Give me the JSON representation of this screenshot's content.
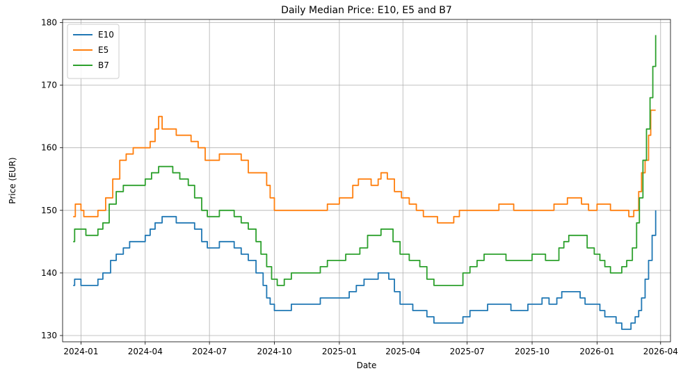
{
  "chart_data": {
    "type": "line",
    "title": "Daily Median Price: E10, E5 and B7",
    "xlabel": "Date",
    "ylabel": "Price (EUR)",
    "xlim": [
      "2023-12-06",
      "2026-04-15"
    ],
    "ylim": [
      129,
      180.5
    ],
    "x_ticks": [
      "2024-01",
      "2024-04",
      "2024-07",
      "2024-10",
      "2025-01",
      "2025-04",
      "2025-07",
      "2025-10",
      "2026-01",
      "2026-04"
    ],
    "y_ticks": [
      130,
      140,
      150,
      160,
      170,
      180
    ],
    "grid": true,
    "legend_position": "top-left",
    "colors": {
      "E10": "#1f77b4",
      "E5": "#ff7f0e",
      "B7": "#2ca02c"
    },
    "series": [
      {
        "name": "E10",
        "color": "#1f77b4",
        "points": [
          [
            "2023-12-21",
            138
          ],
          [
            "2023-12-23",
            139
          ],
          [
            "2024-01-01",
            138
          ],
          [
            "2024-01-20",
            138
          ],
          [
            "2024-01-25",
            139
          ],
          [
            "2024-02-01",
            140
          ],
          [
            "2024-02-12",
            142
          ],
          [
            "2024-02-20",
            143
          ],
          [
            "2024-03-01",
            144
          ],
          [
            "2024-03-10",
            145
          ],
          [
            "2024-03-25",
            145
          ],
          [
            "2024-04-01",
            146
          ],
          [
            "2024-04-08",
            147
          ],
          [
            "2024-04-15",
            148
          ],
          [
            "2024-04-25",
            149
          ],
          [
            "2024-05-05",
            149
          ],
          [
            "2024-05-15",
            148
          ],
          [
            "2024-06-01",
            148
          ],
          [
            "2024-06-10",
            147
          ],
          [
            "2024-06-20",
            145
          ],
          [
            "2024-06-28",
            144
          ],
          [
            "2024-07-05",
            144
          ],
          [
            "2024-07-15",
            145
          ],
          [
            "2024-07-25",
            145
          ],
          [
            "2024-08-05",
            144
          ],
          [
            "2024-08-15",
            143
          ],
          [
            "2024-08-25",
            142
          ],
          [
            "2024-09-05",
            140
          ],
          [
            "2024-09-15",
            138
          ],
          [
            "2024-09-20",
            136
          ],
          [
            "2024-09-25",
            135
          ],
          [
            "2024-10-01",
            134
          ],
          [
            "2024-10-15",
            134
          ],
          [
            "2024-10-25",
            135
          ],
          [
            "2024-11-10",
            135
          ],
          [
            "2024-11-25",
            135
          ],
          [
            "2024-12-05",
            136
          ],
          [
            "2024-12-20",
            136
          ],
          [
            "2025-01-05",
            136
          ],
          [
            "2025-01-15",
            137
          ],
          [
            "2025-01-25",
            138
          ],
          [
            "2025-02-05",
            139
          ],
          [
            "2025-02-15",
            139
          ],
          [
            "2025-02-25",
            140
          ],
          [
            "2025-03-05",
            140
          ],
          [
            "2025-03-12",
            139
          ],
          [
            "2025-03-20",
            137
          ],
          [
            "2025-03-28",
            135
          ],
          [
            "2025-04-05",
            135
          ],
          [
            "2025-04-15",
            134
          ],
          [
            "2025-04-25",
            134
          ],
          [
            "2025-05-05",
            133
          ],
          [
            "2025-05-15",
            132
          ],
          [
            "2025-05-30",
            132
          ],
          [
            "2025-06-15",
            132
          ],
          [
            "2025-06-25",
            133
          ],
          [
            "2025-07-05",
            134
          ],
          [
            "2025-07-20",
            134
          ],
          [
            "2025-07-30",
            135
          ],
          [
            "2025-08-10",
            135
          ],
          [
            "2025-08-20",
            135
          ],
          [
            "2025-09-01",
            134
          ],
          [
            "2025-09-15",
            134
          ],
          [
            "2025-09-25",
            135
          ],
          [
            "2025-10-05",
            135
          ],
          [
            "2025-10-15",
            136
          ],
          [
            "2025-10-25",
            135
          ],
          [
            "2025-11-05",
            136
          ],
          [
            "2025-11-12",
            137
          ],
          [
            "2025-11-20",
            137
          ],
          [
            "2025-11-30",
            137
          ],
          [
            "2025-12-08",
            136
          ],
          [
            "2025-12-15",
            135
          ],
          [
            "2025-12-25",
            135
          ],
          [
            "2026-01-05",
            134
          ],
          [
            "2026-01-12",
            133
          ],
          [
            "2026-01-20",
            133
          ],
          [
            "2026-01-28",
            132
          ],
          [
            "2026-02-05",
            131
          ],
          [
            "2026-02-12",
            131
          ],
          [
            "2026-02-18",
            132
          ],
          [
            "2026-02-24",
            133
          ],
          [
            "2026-03-01",
            134
          ],
          [
            "2026-03-05",
            136
          ],
          [
            "2026-03-10",
            139
          ],
          [
            "2026-03-15",
            142
          ],
          [
            "2026-03-20",
            146
          ],
          [
            "2026-03-25",
            150
          ]
        ]
      },
      {
        "name": "E5",
        "color": "#ff7f0e",
        "points": [
          [
            "2023-12-21",
            149
          ],
          [
            "2023-12-24",
            151
          ],
          [
            "2024-01-01",
            150
          ],
          [
            "2024-01-05",
            149
          ],
          [
            "2024-01-15",
            149
          ],
          [
            "2024-01-25",
            150
          ],
          [
            "2024-02-05",
            152
          ],
          [
            "2024-02-15",
            155
          ],
          [
            "2024-02-25",
            158
          ],
          [
            "2024-03-05",
            159
          ],
          [
            "2024-03-15",
            160
          ],
          [
            "2024-03-25",
            160
          ],
          [
            "2024-04-01",
            160
          ],
          [
            "2024-04-08",
            161
          ],
          [
            "2024-04-15",
            163
          ],
          [
            "2024-04-20",
            165
          ],
          [
            "2024-04-25",
            163
          ],
          [
            "2024-05-05",
            163
          ],
          [
            "2024-05-15",
            162
          ],
          [
            "2024-05-25",
            162
          ],
          [
            "2024-06-05",
            161
          ],
          [
            "2024-06-15",
            160
          ],
          [
            "2024-06-25",
            158
          ],
          [
            "2024-07-05",
            158
          ],
          [
            "2024-07-15",
            159
          ],
          [
            "2024-07-25",
            159
          ],
          [
            "2024-08-05",
            159
          ],
          [
            "2024-08-15",
            158
          ],
          [
            "2024-08-25",
            156
          ],
          [
            "2024-09-05",
            156
          ],
          [
            "2024-09-15",
            156
          ],
          [
            "2024-09-20",
            154
          ],
          [
            "2024-09-25",
            152
          ],
          [
            "2024-10-01",
            150
          ],
          [
            "2024-10-15",
            150
          ],
          [
            "2024-11-01",
            150
          ],
          [
            "2024-11-15",
            150
          ],
          [
            "2024-12-01",
            150
          ],
          [
            "2024-12-15",
            151
          ],
          [
            "2025-01-01",
            152
          ],
          [
            "2025-01-10",
            152
          ],
          [
            "2025-01-20",
            154
          ],
          [
            "2025-01-28",
            155
          ],
          [
            "2025-02-05",
            155
          ],
          [
            "2025-02-15",
            154
          ],
          [
            "2025-02-25",
            155
          ],
          [
            "2025-03-01",
            156
          ],
          [
            "2025-03-10",
            155
          ],
          [
            "2025-03-20",
            153
          ],
          [
            "2025-03-30",
            152
          ],
          [
            "2025-04-10",
            151
          ],
          [
            "2025-04-20",
            150
          ],
          [
            "2025-04-30",
            149
          ],
          [
            "2025-05-10",
            149
          ],
          [
            "2025-05-20",
            148
          ],
          [
            "2025-06-01",
            148
          ],
          [
            "2025-06-12",
            149
          ],
          [
            "2025-06-20",
            150
          ],
          [
            "2025-07-05",
            150
          ],
          [
            "2025-07-20",
            150
          ],
          [
            "2025-08-05",
            150
          ],
          [
            "2025-08-15",
            151
          ],
          [
            "2025-08-25",
            151
          ],
          [
            "2025-09-05",
            150
          ],
          [
            "2025-09-20",
            150
          ],
          [
            "2025-10-05",
            150
          ],
          [
            "2025-10-20",
            150
          ],
          [
            "2025-11-01",
            151
          ],
          [
            "2025-11-10",
            151
          ],
          [
            "2025-11-20",
            152
          ],
          [
            "2025-11-30",
            152
          ],
          [
            "2025-12-10",
            151
          ],
          [
            "2025-12-20",
            150
          ],
          [
            "2026-01-01",
            151
          ],
          [
            "2026-01-10",
            151
          ],
          [
            "2026-01-20",
            150
          ],
          [
            "2026-01-30",
            150
          ],
          [
            "2026-02-08",
            150
          ],
          [
            "2026-02-15",
            149
          ],
          [
            "2026-02-22",
            150
          ],
          [
            "2026-03-01",
            153
          ],
          [
            "2026-03-05",
            156
          ],
          [
            "2026-03-10",
            158
          ],
          [
            "2026-03-15",
            162
          ],
          [
            "2026-03-18",
            166
          ],
          [
            "2026-03-25",
            166
          ]
        ]
      },
      {
        "name": "B7",
        "color": "#2ca02c",
        "points": [
          [
            "2023-12-21",
            145
          ],
          [
            "2023-12-23",
            147
          ],
          [
            "2024-01-01",
            147
          ],
          [
            "2024-01-08",
            146
          ],
          [
            "2024-01-18",
            146
          ],
          [
            "2024-01-25",
            147
          ],
          [
            "2024-02-01",
            148
          ],
          [
            "2024-02-10",
            151
          ],
          [
            "2024-02-20",
            153
          ],
          [
            "2024-03-01",
            154
          ],
          [
            "2024-03-15",
            154
          ],
          [
            "2024-03-25",
            154
          ],
          [
            "2024-04-01",
            155
          ],
          [
            "2024-04-10",
            156
          ],
          [
            "2024-04-20",
            157
          ],
          [
            "2024-05-01",
            157
          ],
          [
            "2024-05-10",
            156
          ],
          [
            "2024-05-20",
            155
          ],
          [
            "2024-06-01",
            154
          ],
          [
            "2024-06-10",
            152
          ],
          [
            "2024-06-20",
            150
          ],
          [
            "2024-06-28",
            149
          ],
          [
            "2024-07-05",
            149
          ],
          [
            "2024-07-15",
            150
          ],
          [
            "2024-07-25",
            150
          ],
          [
            "2024-08-05",
            149
          ],
          [
            "2024-08-15",
            148
          ],
          [
            "2024-08-25",
            147
          ],
          [
            "2024-09-05",
            145
          ],
          [
            "2024-09-12",
            143
          ],
          [
            "2024-09-20",
            141
          ],
          [
            "2024-09-27",
            139
          ],
          [
            "2024-10-05",
            138
          ],
          [
            "2024-10-15",
            139
          ],
          [
            "2024-10-25",
            140
          ],
          [
            "2024-11-10",
            140
          ],
          [
            "2024-11-25",
            140
          ],
          [
            "2024-12-05",
            141
          ],
          [
            "2024-12-15",
            142
          ],
          [
            "2024-12-30",
            142
          ],
          [
            "2025-01-10",
            143
          ],
          [
            "2025-01-20",
            143
          ],
          [
            "2025-01-30",
            144
          ],
          [
            "2025-02-10",
            146
          ],
          [
            "2025-02-20",
            146
          ],
          [
            "2025-03-01",
            147
          ],
          [
            "2025-03-10",
            147
          ],
          [
            "2025-03-18",
            145
          ],
          [
            "2025-03-28",
            143
          ],
          [
            "2025-04-10",
            142
          ],
          [
            "2025-04-25",
            141
          ],
          [
            "2025-05-05",
            139
          ],
          [
            "2025-05-15",
            138
          ],
          [
            "2025-06-01",
            138
          ],
          [
            "2025-06-15",
            138
          ],
          [
            "2025-06-25",
            140
          ],
          [
            "2025-07-05",
            141
          ],
          [
            "2025-07-15",
            142
          ],
          [
            "2025-07-25",
            143
          ],
          [
            "2025-08-05",
            143
          ],
          [
            "2025-08-15",
            143
          ],
          [
            "2025-08-25",
            142
          ],
          [
            "2025-09-05",
            142
          ],
          [
            "2025-09-20",
            142
          ],
          [
            "2025-10-01",
            143
          ],
          [
            "2025-10-10",
            143
          ],
          [
            "2025-10-20",
            142
          ],
          [
            "2025-10-30",
            142
          ],
          [
            "2025-11-08",
            144
          ],
          [
            "2025-11-15",
            145
          ],
          [
            "2025-11-22",
            146
          ],
          [
            "2025-12-01",
            146
          ],
          [
            "2025-12-10",
            146
          ],
          [
            "2025-12-18",
            144
          ],
          [
            "2025-12-28",
            143
          ],
          [
            "2026-01-05",
            142
          ],
          [
            "2026-01-12",
            141
          ],
          [
            "2026-01-20",
            140
          ],
          [
            "2026-01-28",
            140
          ],
          [
            "2026-02-05",
            141
          ],
          [
            "2026-02-12",
            142
          ],
          [
            "2026-02-20",
            144
          ],
          [
            "2026-02-26",
            148
          ],
          [
            "2026-03-02",
            152
          ],
          [
            "2026-03-07",
            158
          ],
          [
            "2026-03-12",
            163
          ],
          [
            "2026-03-17",
            168
          ],
          [
            "2026-03-21",
            173
          ],
          [
            "2026-03-25",
            178
          ]
        ]
      }
    ]
  }
}
